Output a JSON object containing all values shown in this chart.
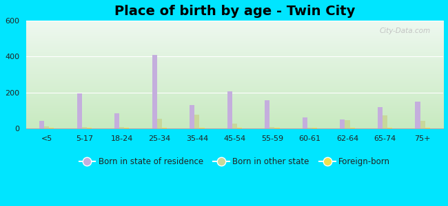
{
  "title": "Place of birth by age - Twin City",
  "categories": [
    "<5",
    "5-17",
    "18-24",
    "25-34",
    "35-44",
    "45-54",
    "55-59",
    "60-61",
    "62-64",
    "65-74",
    "75+"
  ],
  "born_in_state": [
    40,
    195,
    85,
    410,
    130,
    205,
    155,
    60,
    50,
    120,
    148
  ],
  "born_other_state": [
    10,
    8,
    8,
    55,
    75,
    25,
    8,
    5,
    45,
    72,
    42
  ],
  "foreign_born": [
    5,
    5,
    5,
    5,
    5,
    5,
    5,
    5,
    5,
    5,
    5
  ],
  "bar_color_state": "#c4aedd",
  "bar_color_other": "#c8d89a",
  "bar_color_foreign": "#f0e050",
  "background_outer": "#00e5ff",
  "background_inner_top": "#eef8f0",
  "background_inner_bottom": "#c8eac0",
  "ylim": [
    0,
    600
  ],
  "yticks": [
    0,
    200,
    400,
    600
  ],
  "watermark": "City-Data.com",
  "legend_labels": [
    "Born in state of residence",
    "Born in other state",
    "Foreign-born"
  ],
  "title_fontsize": 14,
  "bar_width": 0.13
}
